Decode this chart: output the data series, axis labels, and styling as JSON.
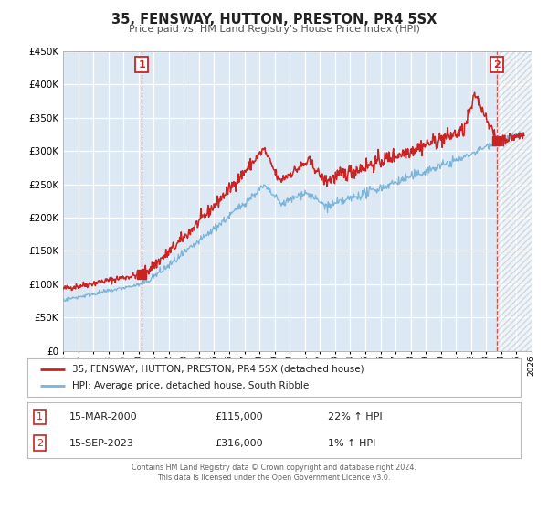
{
  "title": "35, FENSWAY, HUTTON, PRESTON, PR4 5SX",
  "subtitle": "Price paid vs. HM Land Registry's House Price Index (HPI)",
  "fig_bg_color": "#ffffff",
  "plot_bg_color": "#dce9f5",
  "red_line_color": "#cc2222",
  "blue_line_color": "#7ab4d8",
  "grid_color": "#ffffff",
  "annotation1_date": 2000.21,
  "annotation1_red_val": 115000,
  "annotation2_date": 2023.71,
  "annotation2_red_val": 316000,
  "annotation2_blue_val": 316000,
  "ylim": [
    0,
    450000
  ],
  "xlim": [
    1995,
    2026
  ],
  "yticks": [
    0,
    50000,
    100000,
    150000,
    200000,
    250000,
    300000,
    350000,
    400000,
    450000
  ],
  "xticks": [
    1995,
    1996,
    1997,
    1998,
    1999,
    2000,
    2001,
    2002,
    2003,
    2004,
    2005,
    2006,
    2007,
    2008,
    2009,
    2010,
    2011,
    2012,
    2013,
    2014,
    2015,
    2016,
    2017,
    2018,
    2019,
    2020,
    2021,
    2022,
    2023,
    2024,
    2025,
    2026
  ],
  "legend_red_label": "35, FENSWAY, HUTTON, PRESTON, PR4 5SX (detached house)",
  "legend_blue_label": "HPI: Average price, detached house, South Ribble",
  "table_row1": [
    "1",
    "15-MAR-2000",
    "£115,000",
    "22% ↑ HPI"
  ],
  "table_row2": [
    "2",
    "15-SEP-2023",
    "£316,000",
    "1% ↑ HPI"
  ],
  "footer_line1": "Contains HM Land Registry data © Crown copyright and database right 2024.",
  "footer_line2": "This data is licensed under the Open Government Licence v3.0."
}
